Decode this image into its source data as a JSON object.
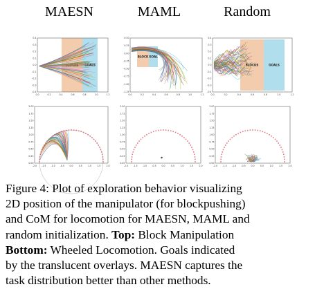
{
  "column_titles": [
    "MAESN",
    "MAML",
    "Random"
  ],
  "overlays": {
    "maesn": {
      "blocks": "BLOCKS",
      "goals": "GOALS"
    },
    "maml": {
      "blocks": "BLOCK",
      "goals": "GOAL"
    },
    "random": {
      "blocks": "BLOCKS",
      "goals": "GOALS"
    }
  },
  "top_axes": {
    "maesn": {
      "x_ticks": [
        "0.0",
        "0.2",
        "0.4",
        "0.6",
        "0.8",
        "1.0",
        "1.2"
      ],
      "y_ticks": [
        "0.4",
        "0.3",
        "0.2",
        "0.1",
        "0.0",
        "-0.1",
        "-0.2",
        "-0.3",
        "-0.4"
      ]
    },
    "maml": {
      "x_ticks": [
        "0.0",
        "0.2",
        "0.4",
        "0.6",
        "0.8",
        "1.0",
        "1.2"
      ],
      "y_ticks": [
        "0.50",
        "0.25",
        "0.00",
        "-0.25",
        "-0.50",
        "-0.75",
        "-1.00",
        "-1.25"
      ]
    },
    "random": {
      "x_ticks": [
        "0.0",
        "0.2",
        "0.4",
        "0.6",
        "0.8",
        "1.0",
        "1.2"
      ],
      "y_ticks": [
        "0.4",
        "0.3",
        "0.2",
        "0.1",
        "0.0",
        "-0.1",
        "-0.2",
        "-0.3",
        "-0.4"
      ]
    }
  },
  "bottom_axes": {
    "x_ticks": [
      "-2.0",
      "-1.5",
      "-1.0",
      "-0.5",
      "0.0",
      "0.5",
      "1.0",
      "1.5",
      "2.0"
    ],
    "y_ticks": [
      "2.00",
      "1.75",
      "1.50",
      "1.25",
      "1.00",
      "0.75",
      "0.50",
      "0.25",
      "0.00"
    ]
  },
  "colors": {
    "blocks_overlay": "#e9a36a",
    "goals_overlay": "#6fc3de",
    "goal_marker": "#e0606a"
  },
  "caption": {
    "label": "Figure 4:",
    "line1": "Plot of exploration behavior visualizing",
    "line2": "2D position of the manipulator (for blockpushing)",
    "line3": "and CoM for locomotion for MAESN, MAML and",
    "line4_a": "random initialization.",
    "line4_b": "Top:",
    "line4_c": "Block Manipulation",
    "line5_a": "Bottom:",
    "line5_b": "Wheeled Locomotion. Goals indicated",
    "line6": "by the translucent overlays. MAESN captures the",
    "line7": "task distribution better than other methods."
  }
}
